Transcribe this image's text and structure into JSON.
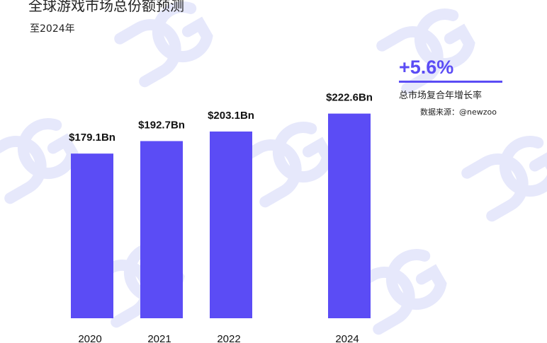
{
  "header": {
    "title": "全球游戏市场总份额预测",
    "subtitle": "至2024年"
  },
  "cagr": {
    "value": "+5.6%",
    "label": "总市场复合年增长率",
    "color": "#5b4cf5"
  },
  "source": "数据来源：@newzoo",
  "watermark_text": "DG",
  "colors": {
    "bar": "#5b4cf5",
    "watermark": "#e4e6fb"
  },
  "chart_data": {
    "type": "bar",
    "categories": [
      "2020",
      "2021",
      "2022",
      "2024"
    ],
    "values": [
      179.1,
      192.7,
      203.1,
      222.6
    ],
    "value_labels": [
      "$179.1Bn",
      "$192.7Bn",
      "$203.1Bn",
      "$222.6Bn"
    ],
    "title": "全球游戏市场总份额预测",
    "subtitle": "至2024年",
    "xlabel": "",
    "ylabel": "",
    "grid": false,
    "legend": "none"
  }
}
